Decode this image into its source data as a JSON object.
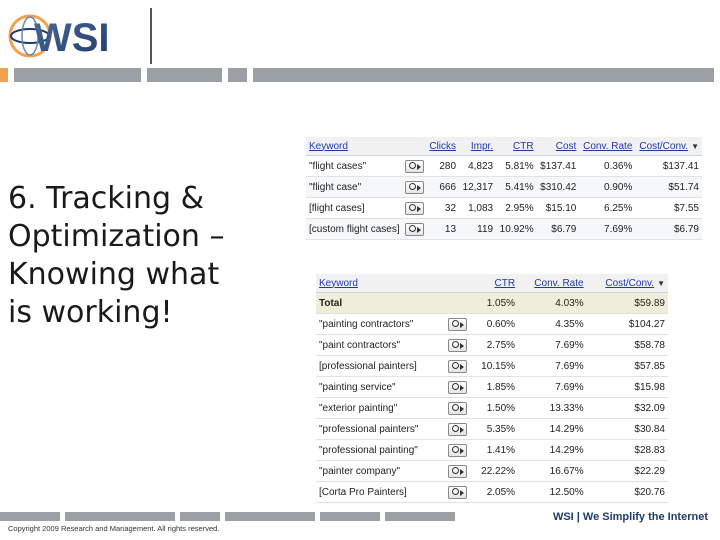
{
  "brand": {
    "logo_text": "WSI",
    "tagline": "WSI | We Simplify the Internet",
    "copyright": "Copyright 2009 Research and Management. All rights reserved."
  },
  "slide": {
    "title_lines": [
      "6. Tracking &",
      "Optimization –",
      "Knowing what",
      "is working!"
    ]
  },
  "table1": {
    "headers": [
      "Keyword",
      "Clicks",
      "Impr.",
      "CTR",
      "Cost",
      "Conv. Rate",
      "Cost/Conv."
    ],
    "sort_indicator": "▼",
    "rows": [
      {
        "keyword": "\"flight cases\"",
        "clicks": "280",
        "impr": "4,823",
        "ctr": "5.81%",
        "cost": "$137.41",
        "conv_rate": "0.36%",
        "cost_conv": "$137.41"
      },
      {
        "keyword": "\"flight case\"",
        "clicks": "666",
        "impr": "12,317",
        "ctr": "5.41%",
        "cost": "$310.42",
        "conv_rate": "0.90%",
        "cost_conv": "$51.74"
      },
      {
        "keyword": "[flight cases]",
        "clicks": "32",
        "impr": "1,083",
        "ctr": "2.95%",
        "cost": "$15.10",
        "conv_rate": "6.25%",
        "cost_conv": "$7.55"
      },
      {
        "keyword": "[custom flight cases]",
        "clicks": "13",
        "impr": "119",
        "ctr": "10.92%",
        "cost": "$6.79",
        "conv_rate": "7.69%",
        "cost_conv": "$6.79"
      }
    ]
  },
  "table2": {
    "headers": [
      "Keyword",
      "CTR",
      "Conv. Rate",
      "Cost/Conv."
    ],
    "sort_indicator": "▼",
    "total": {
      "label": "Total",
      "ctr": "1.05%",
      "conv_rate": "4.03%",
      "cost_conv": "$59.89"
    },
    "rows": [
      {
        "keyword": "\"painting contractors\"",
        "ctr": "0.60%",
        "conv_rate": "4.35%",
        "cost_conv": "$104.27"
      },
      {
        "keyword": "\"paint contractors\"",
        "ctr": "2.75%",
        "conv_rate": "7.69%",
        "cost_conv": "$58.78"
      },
      {
        "keyword": "[professional painters]",
        "ctr": "10.15%",
        "conv_rate": "7.69%",
        "cost_conv": "$57.85"
      },
      {
        "keyword": "\"painting service\"",
        "ctr": "1.85%",
        "conv_rate": "7.69%",
        "cost_conv": "$15.98"
      },
      {
        "keyword": "\"exterior painting\"",
        "ctr": "1.50%",
        "conv_rate": "13.33%",
        "cost_conv": "$32.09"
      },
      {
        "keyword": "\"professional painters\"",
        "ctr": "5.35%",
        "conv_rate": "14.29%",
        "cost_conv": "$30.84"
      },
      {
        "keyword": "\"professional painting\"",
        "ctr": "1.41%",
        "conv_rate": "14.29%",
        "cost_conv": "$28.83"
      },
      {
        "keyword": "\"painter company\"",
        "ctr": "22.22%",
        "conv_rate": "16.67%",
        "cost_conv": "$22.29"
      },
      {
        "keyword": "[Corta Pro Painters]",
        "ctr": "2.05%",
        "conv_rate": "12.50%",
        "cost_conv": "$20.76"
      }
    ]
  },
  "icons": {
    "magnifier": "magnifier-icon",
    "sort": "sort-desc-icon",
    "globe": "globe-icon"
  },
  "colors": {
    "accent_orange": "#f1a251",
    "bar_gray": "#9aa0a6",
    "brand_navy": "#1f3b6a",
    "link_blue": "#1f3aa8",
    "total_row": "#eeeed9"
  }
}
